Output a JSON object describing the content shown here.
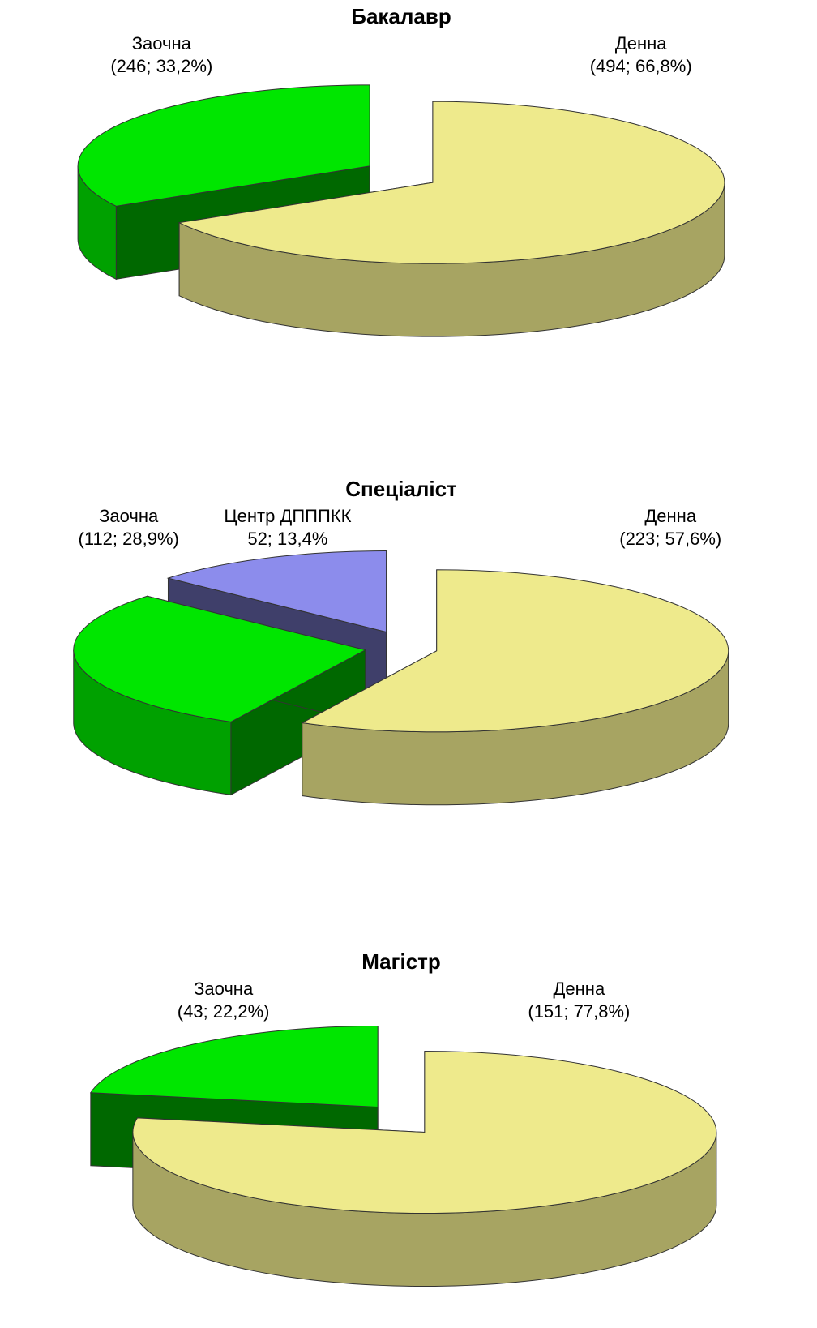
{
  "chart_data": [
    {
      "type": "pie",
      "title": "Бакалавр",
      "categories": [
        "Денна",
        "Заочна"
      ],
      "values": [
        494,
        246
      ],
      "value_labels": [
        "(494; 66,8%)",
        "(246; 33,2%)"
      ],
      "colors": [
        "#eeea8c",
        "#00e600"
      ]
    },
    {
      "type": "pie",
      "title": "Спеціаліст",
      "categories": [
        "Денна",
        "Заочна",
        "Центр ДПППКК"
      ],
      "values": [
        223,
        112,
        52
      ],
      "value_labels": [
        "(223; 57,6%)",
        "(112; 28,9%)",
        "52; 13,4%"
      ],
      "colors": [
        "#eeea8c",
        "#00e600",
        "#8c8cec"
      ]
    },
    {
      "type": "pie",
      "title": "Магістр",
      "categories": [
        "Денна",
        "Заочна"
      ],
      "values": [
        151,
        43
      ],
      "value_labels": [
        "(151; 77,8%)",
        "(43; 22,2%)"
      ],
      "colors": [
        "#eeea8c",
        "#00e600"
      ]
    }
  ]
}
